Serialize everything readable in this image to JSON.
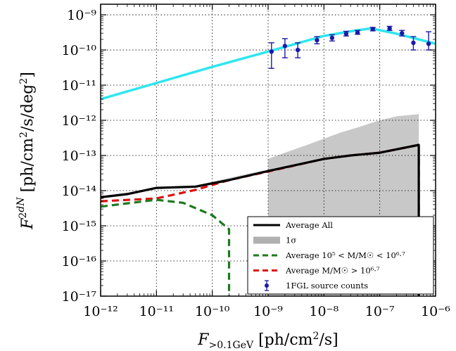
{
  "chart_data": {
    "type": "line",
    "title": "",
    "xlabel": "F>0.1GeV [ph/cm²/s]",
    "ylabel": "F² dN/dF [ph/cm²/s/deg²]",
    "xscale": "log",
    "yscale": "log",
    "xlim": [
      1e-12,
      1e-06
    ],
    "ylim": [
      1e-17,
      2e-09
    ],
    "grid": true,
    "legend_position": "lower-right",
    "x_tick_labels": [
      "10⁻¹²",
      "10⁻¹¹",
      "10⁻¹⁰",
      "10⁻⁹",
      "10⁻⁸",
      "10⁻⁷",
      "10⁻⁶"
    ],
    "y_tick_labels": [
      "10⁻¹⁷",
      "10⁻¹⁶",
      "10⁻¹⁵",
      "10⁻¹⁴",
      "10⁻¹³",
      "10⁻¹²",
      "10⁻¹¹",
      "10⁻¹⁰",
      "10⁻⁹"
    ],
    "band": {
      "name": "1σ",
      "color": "#c8c8c8",
      "x": [
        1e-09,
        2e-09,
        5e-09,
        1e-08,
        2e-08,
        5e-08,
        1e-07,
        2e-07,
        5e-07
      ],
      "upper": [
        8e-14,
        1.2e-13,
        2e-13,
        3e-13,
        4.5e-13,
        7e-13,
        1e-12,
        1.3e-12,
        1.5e-12
      ],
      "lower": [
        1e-17,
        1e-17,
        1e-17,
        1e-17,
        1e-17,
        1e-17,
        1e-17,
        1e-17,
        1e-17
      ],
      "upper_left": [
        [
          1e-12,
          6.5e-15
        ],
        [
          1e-11,
          1.2e-14
        ],
        [
          5e-11,
          1.4e-14
        ],
        [
          2e-10,
          2.3e-14
        ],
        [
          1e-09,
          4e-14
        ]
      ]
    },
    "series": [
      {
        "name": "Average All",
        "color": "#000000",
        "style": "solid",
        "x": [
          1e-12,
          3e-12,
          1e-11,
          5e-11,
          2e-10,
          1e-09,
          1e-08,
          3e-08,
          1e-07,
          5e-07,
          5e-07
        ],
        "y": [
          6.5e-15,
          8e-15,
          1.2e-14,
          1.3e-14,
          2e-14,
          3.6e-14,
          8e-14,
          1e-13,
          1.2e-13,
          2e-13,
          1e-17
        ]
      },
      {
        "name": "Average 10⁵ < M/M☉ < 10⁶·⁷",
        "color": "#1e7a1e",
        "style": "dashed",
        "x": [
          1e-12,
          1e-11,
          3e-11,
          1e-10,
          2e-10,
          2e-10
        ],
        "y": [
          3.5e-15,
          5.5e-15,
          4.5e-15,
          2e-15,
          8e-16,
          1e-17
        ]
      },
      {
        "name": "Average M/M☉ > 10⁶·⁷",
        "color": "#e01010",
        "style": "dashed",
        "x": [
          1e-12,
          1e-11,
          5e-11,
          2e-10,
          1e-09,
          1e-08,
          3e-08,
          1e-07,
          5e-07,
          5e-07
        ],
        "y": [
          5e-15,
          6e-15,
          1.05e-14,
          2e-14,
          3.5e-14,
          8e-14,
          1e-13,
          1.2e-13,
          2e-13,
          1e-17
        ]
      },
      {
        "name": "",
        "color": "#2ee6ee",
        "style": "solid",
        "x": [
          1e-12,
          1e-11,
          1e-10,
          1e-09,
          1e-08,
          3e-08,
          7e-08,
          2e-07,
          5e-07,
          1e-06
        ],
        "y": [
          4e-12,
          1.15e-11,
          3.3e-11,
          9e-11,
          2.5e-10,
          3.4e-10,
          4.1e-10,
          2.9e-10,
          2e-10,
          1.5e-10
        ]
      }
    ],
    "points": {
      "name": "1FGL source counts",
      "color": "#1a1aa8",
      "x": [
        1.15e-09,
        2e-09,
        3.4e-09,
        7.5e-09,
        1.4e-08,
        2.5e-08,
        4e-08,
        7.5e-08,
        1.5e-07,
        2.5e-07,
        4e-07,
        7.5e-07
      ],
      "y": [
        9e-11,
        1.3e-10,
        1e-10,
        1.9e-10,
        2.2e-10,
        2.9e-10,
        3.1e-10,
        3.9e-10,
        4.1e-10,
        3e-10,
        1.6e-10,
        1.5e-10
      ],
      "ylow": [
        3e-11,
        6e-11,
        6e-11,
        1.5e-10,
        1.8e-10,
        2.5e-10,
        2.8e-10,
        3.5e-10,
        3.6e-10,
        2.5e-10,
        1e-10,
        1e-10
      ],
      "yhigh": [
        1.6e-10,
        2.1e-10,
        1.6e-10,
        2.4e-10,
        2.7e-10,
        3.4e-10,
        3.6e-10,
        4.4e-10,
        4.7e-10,
        3.6e-10,
        2.4e-10,
        3.3e-10
      ]
    },
    "legend": [
      {
        "label": "Average All",
        "kind": "line",
        "color": "#000000",
        "style": "solid"
      },
      {
        "label": "1σ",
        "kind": "band",
        "color": "#b0b0b0"
      },
      {
        "label": "Average 10⁵ < M/M☉ < 10⁶·⁷",
        "kind": "line",
        "color": "#1e7a1e",
        "style": "dashed"
      },
      {
        "label": "Average M/M☉ > 10⁶·⁷",
        "kind": "line",
        "color": "#e01010",
        "style": "dashed"
      },
      {
        "label": "1FGL source counts",
        "kind": "errorbar",
        "color": "#1a1aa8"
      }
    ]
  }
}
